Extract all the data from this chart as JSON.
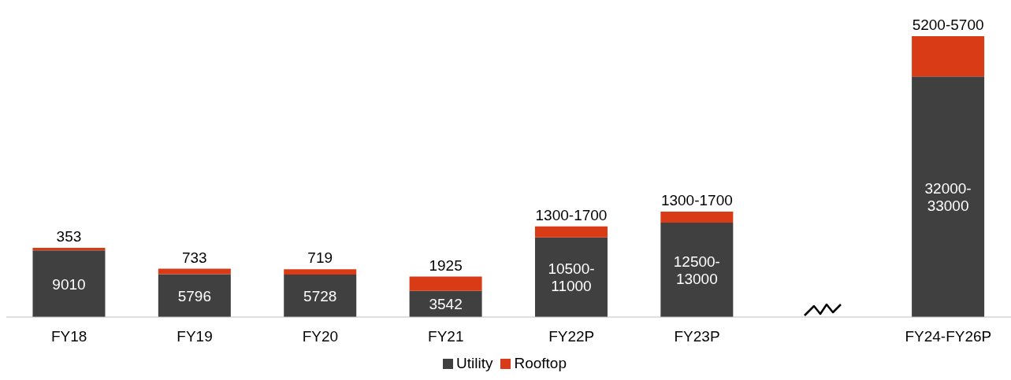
{
  "chart_data": {
    "type": "bar",
    "stacked": true,
    "categories": [
      "FY18",
      "FY19",
      "FY20",
      "FY21",
      "FY22P",
      "FY23P",
      null,
      "FY24-FY26P"
    ],
    "series": [
      {
        "name": "Utility",
        "color": "#404040",
        "values": [
          9010,
          5796,
          5728,
          3542,
          10750,
          12750,
          null,
          32500
        ],
        "value_labels": [
          "9010",
          "5796",
          "5728",
          "3542",
          "10500-11000",
          "12500-13000",
          null,
          "32000-33000"
        ]
      },
      {
        "name": "Rooftop",
        "color": "#d83b16",
        "values": [
          353,
          733,
          719,
          1925,
          1500,
          1500,
          null,
          5450
        ],
        "value_labels": [
          "353",
          "733",
          "719",
          "1925",
          "1300-1700",
          "1300-1700",
          null,
          "5200-5700"
        ]
      }
    ],
    "legend": "bottom",
    "grid": false
  }
}
